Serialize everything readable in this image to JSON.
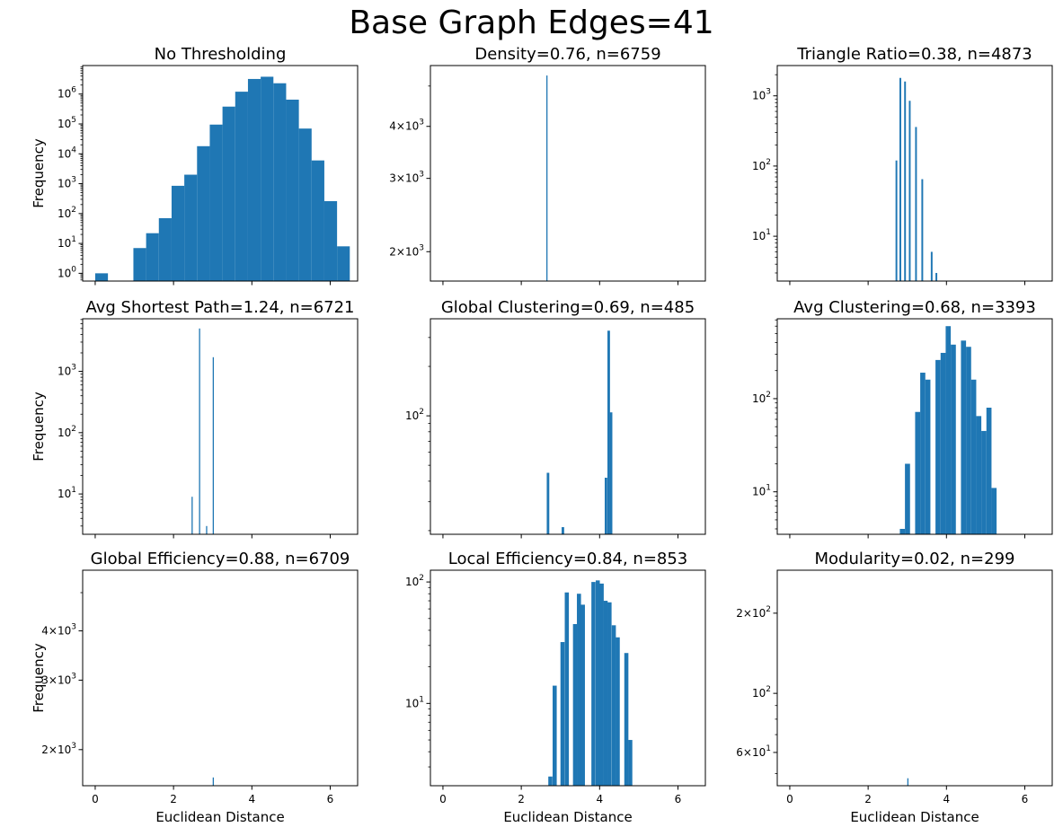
{
  "figure": {
    "title": "Base Graph Edges=41"
  },
  "style": {
    "bar_color": "#1f77b4",
    "axis_color": "#000000",
    "background": "#ffffff"
  },
  "chart_data": [
    {
      "type": "bar",
      "title": "No Thresholding",
      "xlabel": "",
      "ylabel": "Frequency",
      "yscale": "log",
      "xlim": [
        -0.32,
        6.7
      ],
      "ylim": [
        0.55,
        9000000
      ],
      "grid": false,
      "show_xticklabels": false,
      "yticks": [
        {
          "value": 1,
          "label": "10^0"
        },
        {
          "value": 10,
          "label": "10^1"
        },
        {
          "value": 100,
          "label": "10^2"
        },
        {
          "value": 1000,
          "label": "10^3"
        },
        {
          "value": 10000,
          "label": "10^4"
        },
        {
          "value": 100000,
          "label": "10^5"
        },
        {
          "value": 1000000,
          "label": "10^6"
        }
      ],
      "xticks": [
        0,
        2,
        4,
        6
      ],
      "bin_width": 0.325,
      "bars": [
        {
          "x": 0.0,
          "value": 1
        },
        {
          "x": 0.325,
          "value": 0
        },
        {
          "x": 0.975,
          "value": 7
        },
        {
          "x": 1.3,
          "value": 22
        },
        {
          "x": 1.625,
          "value": 70
        },
        {
          "x": 1.95,
          "value": 850
        },
        {
          "x": 2.275,
          "value": 2000
        },
        {
          "x": 2.6,
          "value": 18000
        },
        {
          "x": 2.925,
          "value": 95000
        },
        {
          "x": 3.25,
          "value": 380000
        },
        {
          "x": 3.575,
          "value": 1200000
        },
        {
          "x": 3.9,
          "value": 3200000
        },
        {
          "x": 4.225,
          "value": 3800000
        },
        {
          "x": 4.55,
          "value": 2300000
        },
        {
          "x": 4.875,
          "value": 650000
        },
        {
          "x": 5.2,
          "value": 70000
        },
        {
          "x": 5.525,
          "value": 6000
        },
        {
          "x": 5.85,
          "value": 260
        },
        {
          "x": 6.175,
          "value": 8
        }
      ]
    },
    {
      "type": "bar",
      "title": "Density=0.76, n=6759",
      "xlabel": "",
      "ylabel": "",
      "yscale": "log",
      "xlim": [
        -0.32,
        6.7
      ],
      "ylim": [
        1700,
        5600
      ],
      "grid": false,
      "show_xticklabels": false,
      "yticks": [
        {
          "value": 2000,
          "label": "2×10^3"
        },
        {
          "value": 3000,
          "label": "3×10^3"
        },
        {
          "value": 4000,
          "label": "4×10^3"
        }
      ],
      "xticks": [
        0,
        2,
        4,
        6
      ],
      "bin_width": 0.03,
      "bars": [
        {
          "x": 2.64,
          "value": 5300
        }
      ]
    },
    {
      "type": "bar",
      "title": "Triangle Ratio=0.38, n=4873",
      "xlabel": "",
      "ylabel": "",
      "yscale": "log",
      "xlim": [
        -0.32,
        6.7
      ],
      "ylim": [
        2.3,
        2700
      ],
      "grid": false,
      "show_xticklabels": false,
      "yticks": [
        {
          "value": 10,
          "label": "10^1"
        },
        {
          "value": 100,
          "label": "10^2"
        },
        {
          "value": 1000,
          "label": "10^3"
        }
      ],
      "xticks": [
        0,
        2,
        4,
        6
      ],
      "bin_width": 0.045,
      "bars": [
        {
          "x": 2.7,
          "value": 120
        },
        {
          "x": 2.8,
          "value": 1800
        },
        {
          "x": 2.92,
          "value": 1600
        },
        {
          "x": 3.04,
          "value": 850
        },
        {
          "x": 3.2,
          "value": 360
        },
        {
          "x": 3.36,
          "value": 65
        },
        {
          "x": 3.6,
          "value": 6
        },
        {
          "x": 3.72,
          "value": 3
        }
      ]
    },
    {
      "type": "bar",
      "title": "Avg Shortest Path=1.24, n=6721",
      "xlabel": "",
      "ylabel": "Frequency",
      "yscale": "log",
      "xlim": [
        -0.32,
        6.7
      ],
      "ylim": [
        2.2,
        7200
      ],
      "grid": false,
      "show_xticklabels": false,
      "yticks": [
        {
          "value": 10,
          "label": "10^1"
        },
        {
          "value": 100,
          "label": "10^2"
        },
        {
          "value": 1000,
          "label": "10^3"
        }
      ],
      "xticks": [
        0,
        2,
        4,
        6
      ],
      "bin_width": 0.03,
      "bars": [
        {
          "x": 2.46,
          "value": 9
        },
        {
          "x": 2.65,
          "value": 5000
        },
        {
          "x": 2.83,
          "value": 3
        },
        {
          "x": 3.0,
          "value": 1700
        }
      ]
    },
    {
      "type": "bar",
      "title": "Global Clustering=0.69, n=485",
      "xlabel": "",
      "ylabel": "",
      "yscale": "log",
      "xlim": [
        -0.32,
        6.7
      ],
      "ylim": [
        19,
        390
      ],
      "grid": false,
      "show_xticklabels": false,
      "yticks": [
        {
          "value": 100,
          "label": "10^2"
        }
      ],
      "xticks": [
        0,
        2,
        4,
        6
      ],
      "bin_width": 0.065,
      "bars": [
        {
          "x": 2.65,
          "value": 45
        },
        {
          "x": 3.03,
          "value": 21
        },
        {
          "x": 4.13,
          "value": 42
        },
        {
          "x": 4.2,
          "value": 330
        },
        {
          "x": 4.26,
          "value": 105
        }
      ]
    },
    {
      "type": "bar",
      "title": "Avg Clustering=0.68, n=3393",
      "xlabel": "",
      "ylabel": "",
      "yscale": "log",
      "xlim": [
        -0.32,
        6.7
      ],
      "ylim": [
        3.5,
        720
      ],
      "grid": false,
      "show_xticklabels": false,
      "yticks": [
        {
          "value": 10,
          "label": "10^1"
        },
        {
          "value": 100,
          "label": "10^2"
        }
      ],
      "xticks": [
        0,
        2,
        4,
        6
      ],
      "bin_width": 0.13,
      "bars": [
        {
          "x": 2.81,
          "value": 4
        },
        {
          "x": 2.94,
          "value": 20
        },
        {
          "x": 3.2,
          "value": 72
        },
        {
          "x": 3.33,
          "value": 190
        },
        {
          "x": 3.46,
          "value": 160
        },
        {
          "x": 3.72,
          "value": 260
        },
        {
          "x": 3.85,
          "value": 310
        },
        {
          "x": 3.98,
          "value": 600
        },
        {
          "x": 4.11,
          "value": 380
        },
        {
          "x": 4.37,
          "value": 420
        },
        {
          "x": 4.5,
          "value": 360
        },
        {
          "x": 4.63,
          "value": 160
        },
        {
          "x": 4.76,
          "value": 65
        },
        {
          "x": 4.89,
          "value": 45
        },
        {
          "x": 5.02,
          "value": 80
        },
        {
          "x": 5.15,
          "value": 11
        }
      ]
    },
    {
      "type": "bar",
      "title": "Global Efficiency=0.88, n=6709",
      "xlabel": "Euclidean Distance",
      "ylabel": "Frequency",
      "yscale": "log",
      "xlim": [
        -0.32,
        6.7
      ],
      "ylim": [
        1620,
        5700
      ],
      "grid": false,
      "show_xticklabels": true,
      "yticks": [
        {
          "value": 2000,
          "label": "2×10^3"
        },
        {
          "value": 3000,
          "label": "3×10^3"
        },
        {
          "value": 4000,
          "label": "4×10^3"
        }
      ],
      "xticks": [
        0,
        2,
        4,
        6
      ],
      "bin_width": 0.03,
      "bars": [
        {
          "x": 3.0,
          "value": 1700
        }
      ]
    },
    {
      "type": "bar",
      "title": "Local Efficiency=0.84, n=853",
      "xlabel": "Euclidean Distance",
      "ylabel": "",
      "yscale": "log",
      "xlim": [
        -0.32,
        6.7
      ],
      "ylim": [
        2.1,
        125
      ],
      "grid": false,
      "show_xticklabels": true,
      "yticks": [
        {
          "value": 10,
          "label": "10^1"
        },
        {
          "value": 100,
          "label": "10^2"
        }
      ],
      "xticks": [
        0,
        2,
        4,
        6
      ],
      "bin_width": 0.105,
      "bars": [
        {
          "x": 2.69,
          "value": 2.5
        },
        {
          "x": 2.8,
          "value": 14
        },
        {
          "x": 3.0,
          "value": 32
        },
        {
          "x": 3.11,
          "value": 82
        },
        {
          "x": 3.32,
          "value": 45
        },
        {
          "x": 3.42,
          "value": 80
        },
        {
          "x": 3.52,
          "value": 65
        },
        {
          "x": 3.79,
          "value": 100
        },
        {
          "x": 3.9,
          "value": 103
        },
        {
          "x": 4.0,
          "value": 97
        },
        {
          "x": 4.1,
          "value": 70
        },
        {
          "x": 4.2,
          "value": 68
        },
        {
          "x": 4.31,
          "value": 44
        },
        {
          "x": 4.41,
          "value": 35
        },
        {
          "x": 4.63,
          "value": 26
        },
        {
          "x": 4.73,
          "value": 5
        }
      ]
    },
    {
      "type": "bar",
      "title": "Modularity=0.02, n=299",
      "xlabel": "Euclidean Distance",
      "ylabel": "",
      "yscale": "log",
      "xlim": [
        -0.32,
        6.7
      ],
      "ylim": [
        45,
        290
      ],
      "grid": false,
      "show_xticklabels": true,
      "yticks": [
        {
          "value": 60,
          "label": "6×10^1"
        },
        {
          "value": 100,
          "label": "10^2"
        },
        {
          "value": 200,
          "label": "2×10^2"
        }
      ],
      "xticks": [
        0,
        2,
        4,
        6
      ],
      "bin_width": 0.03,
      "bars": [
        {
          "x": 3.0,
          "value": 48
        }
      ]
    }
  ]
}
